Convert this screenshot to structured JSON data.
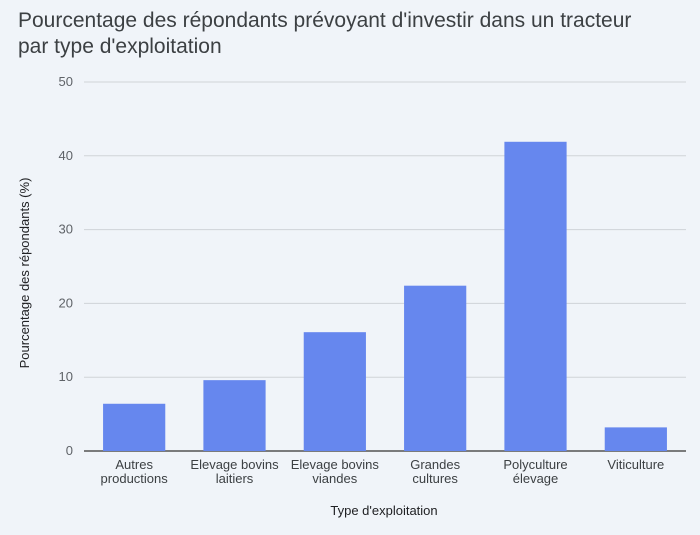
{
  "chart_data": {
    "type": "bar",
    "title": "Pourcentage des répondants prévoyant d'investir dans un tracteur\npar type d'exploitation",
    "xlabel": "Type d'exploitation",
    "ylabel": "Pourcentage des répondants (%)",
    "ylim": [
      0,
      50
    ],
    "yticks": [
      0,
      10,
      20,
      30,
      40,
      50
    ],
    "grid": true,
    "legend": "none",
    "categories": [
      [
        "Autres",
        "productions"
      ],
      [
        "Elevage bovins",
        "laitiers"
      ],
      [
        "Elevage bovins",
        "viandes"
      ],
      [
        "Grandes",
        "cultures"
      ],
      [
        "Polyculture",
        "élevage"
      ],
      [
        "Viticulture"
      ]
    ],
    "values": [
      6.4,
      9.6,
      16.1,
      22.4,
      41.9,
      3.2
    ],
    "bar_color": "#6687ee"
  }
}
